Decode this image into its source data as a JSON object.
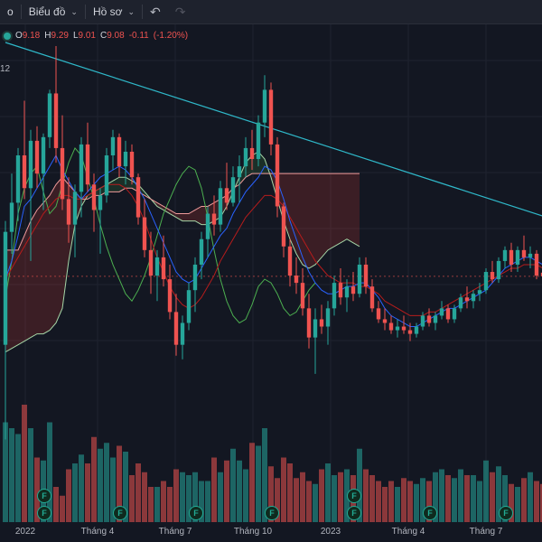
{
  "toolbar": {
    "partial_item": "o",
    "chart_menu": "Biểu đồ",
    "profile_menu": "Hồ sơ",
    "undo_icon": "undo-icon",
    "redo_icon": "redo-icon"
  },
  "legend": {
    "open_label": "O",
    "open_value": "9.18",
    "high_label": "H",
    "high_value": "9.29",
    "low_label": "L",
    "low_value": "9.01",
    "close_label": "C",
    "close_value": "9.08",
    "change": "-0.11",
    "change_pct": "(-1.20%)"
  },
  "left_edge_label": "12",
  "event_badge": "F",
  "colors": {
    "up": "#26a69a",
    "down": "#ef5350",
    "background": "#131722",
    "trendline": "#2fb8c9",
    "conversion": "#2962ff",
    "lagging": "#4caf50"
  },
  "chart_data": {
    "type": "candlestick",
    "title": "",
    "legend": {
      "open": 9.18,
      "high": 9.29,
      "low": 9.01,
      "close": 9.08,
      "change": -0.11,
      "change_pct": -1.2
    },
    "x_tick_labels": [
      "2022",
      "Tháng 4",
      "Tháng 7",
      "Tháng 10",
      "2023",
      "Tháng 4",
      "Tháng 7"
    ],
    "y_axis_visible": false,
    "price_series": [
      [
        7.2,
        10.6,
        4.6,
        10.3
      ],
      [
        10.3,
        11.9,
        9.7,
        11.1
      ],
      [
        11.1,
        12.6,
        10.6,
        12.4
      ],
      [
        12.4,
        13.9,
        11.2,
        11.5
      ],
      [
        11.5,
        13.1,
        9.5,
        12.8
      ],
      [
        12.8,
        13.2,
        11.5,
        11.9
      ],
      [
        11.9,
        13.0,
        10.9,
        12.9
      ],
      [
        12.9,
        14.2,
        12.6,
        14.1
      ],
      [
        14.1,
        15.4,
        12.2,
        12.6
      ],
      [
        12.6,
        13.5,
        10.9,
        11.2
      ],
      [
        11.2,
        11.8,
        10.0,
        10.5
      ],
      [
        10.5,
        11.6,
        9.6,
        11.4
      ],
      [
        11.4,
        12.9,
        10.7,
        12.7
      ],
      [
        12.7,
        13.3,
        11.4,
        11.6
      ],
      [
        11.6,
        11.9,
        10.3,
        10.9
      ],
      [
        10.9,
        11.5,
        9.7,
        11.3
      ],
      [
        11.3,
        12.6,
        11.1,
        12.4
      ],
      [
        12.4,
        13.1,
        12.0,
        12.9
      ],
      [
        12.9,
        13.0,
        11.8,
        12.1
      ],
      [
        12.1,
        12.8,
        11.6,
        12.5
      ],
      [
        12.5,
        12.7,
        11.6,
        11.8
      ],
      [
        11.8,
        11.9,
        10.5,
        10.7
      ],
      [
        10.7,
        11.2,
        9.6,
        9.8
      ],
      [
        9.8,
        10.3,
        8.6,
        9.1
      ],
      [
        9.1,
        9.8,
        8.4,
        9.6
      ],
      [
        9.6,
        10.2,
        8.8,
        9.0
      ],
      [
        9.0,
        9.4,
        7.9,
        8.1
      ],
      [
        8.1,
        8.6,
        6.9,
        7.2
      ],
      [
        7.2,
        8.0,
        6.8,
        7.8
      ],
      [
        7.8,
        8.9,
        7.6,
        8.7
      ],
      [
        8.7,
        9.6,
        8.1,
        9.4
      ],
      [
        9.4,
        10.3,
        9.0,
        10.1
      ],
      [
        10.1,
        11.0,
        9.6,
        10.8
      ],
      [
        10.8,
        11.3,
        10.2,
        10.5
      ],
      [
        10.5,
        11.7,
        10.3,
        11.5
      ],
      [
        11.5,
        12.2,
        10.9,
        11.1
      ],
      [
        11.1,
        12.1,
        11.0,
        11.8
      ],
      [
        11.8,
        12.4,
        11.1,
        12.1
      ],
      [
        12.1,
        12.9,
        11.8,
        12.6
      ],
      [
        12.6,
        13.1,
        12.0,
        12.3
      ],
      [
        12.3,
        13.5,
        12.1,
        13.3
      ],
      [
        13.3,
        14.6,
        12.9,
        14.2
      ],
      [
        14.2,
        14.4,
        12.4,
        12.7
      ],
      [
        12.7,
        12.9,
        10.7,
        11.0
      ],
      [
        11.0,
        11.1,
        9.6,
        9.9
      ],
      [
        9.9,
        10.1,
        8.8,
        9.1
      ],
      [
        9.1,
        9.6,
        8.6,
        8.9
      ],
      [
        8.9,
        9.3,
        8.0,
        8.2
      ],
      [
        8.2,
        8.6,
        7.1,
        7.4
      ],
      [
        7.4,
        8.2,
        6.4,
        7.9
      ],
      [
        7.9,
        8.3,
        7.5,
        7.7
      ],
      [
        7.7,
        8.4,
        7.2,
        8.2
      ],
      [
        8.2,
        9.1,
        8.0,
        8.9
      ],
      [
        8.9,
        9.3,
        8.3,
        8.5
      ],
      [
        8.5,
        9.0,
        8.1,
        8.8
      ],
      [
        8.8,
        9.2,
        8.4,
        8.6
      ],
      [
        8.6,
        9.6,
        8.5,
        9.4
      ],
      [
        9.4,
        9.6,
        8.6,
        8.8
      ],
      [
        8.8,
        9.0,
        8.1,
        8.2
      ],
      [
        8.2,
        8.4,
        7.8,
        7.9
      ],
      [
        7.9,
        8.2,
        7.6,
        7.8
      ],
      [
        7.8,
        8.0,
        7.5,
        7.6
      ],
      [
        7.6,
        7.9,
        7.4,
        7.7
      ],
      [
        7.7,
        8.0,
        7.5,
        7.6
      ],
      [
        7.6,
        7.8,
        7.3,
        7.5
      ],
      [
        7.5,
        7.8,
        7.4,
        7.7
      ],
      [
        7.7,
        8.1,
        7.6,
        8.0
      ],
      [
        8.0,
        8.2,
        7.7,
        7.8
      ],
      [
        7.8,
        8.1,
        7.6,
        8.0
      ],
      [
        8.0,
        8.4,
        7.9,
        8.2
      ],
      [
        8.2,
        8.3,
        7.8,
        7.9
      ],
      [
        7.9,
        8.3,
        7.8,
        8.2
      ],
      [
        8.2,
        8.6,
        8.1,
        8.5
      ],
      [
        8.5,
        8.8,
        8.2,
        8.4
      ],
      [
        8.4,
        8.7,
        8.2,
        8.6
      ],
      [
        8.6,
        8.9,
        8.4,
        8.7
      ],
      [
        8.7,
        9.3,
        8.6,
        9.2
      ],
      [
        9.2,
        9.5,
        8.9,
        9.0
      ],
      [
        9.0,
        9.6,
        8.9,
        9.5
      ],
      [
        9.5,
        9.9,
        9.3,
        9.8
      ],
      [
        9.8,
        10.0,
        9.2,
        9.4
      ],
      [
        9.4,
        9.9,
        9.2,
        9.8
      ],
      [
        9.8,
        10.2,
        9.5,
        9.6
      ],
      [
        9.6,
        9.9,
        9.3,
        9.7
      ],
      [
        9.7,
        9.8,
        9.0,
        9.1
      ],
      [
        9.18,
        9.29,
        9.01,
        9.08
      ]
    ],
    "volume_series": [
      34,
      32,
      30,
      40,
      32,
      22,
      21,
      34,
      12,
      9,
      18,
      20,
      23,
      20,
      29,
      25,
      27,
      22,
      26,
      24,
      16,
      20,
      17,
      12,
      12,
      14,
      12,
      18,
      17,
      16,
      17,
      14,
      14,
      22,
      17,
      21,
      25,
      21,
      18,
      27,
      26,
      32,
      19,
      15,
      22,
      20,
      15,
      17,
      14,
      13,
      18,
      20,
      16,
      17,
      18,
      16,
      25,
      18,
      16,
      14,
      12,
      14,
      12,
      15,
      14,
      13,
      15,
      14,
      17,
      18,
      16,
      15,
      18,
      16,
      16,
      14,
      21,
      17,
      19,
      16,
      13,
      12,
      15,
      17,
      14,
      13
    ],
    "trendline": {
      "from": [
        0,
        15.5
      ],
      "to": [
        85,
        10.5
      ]
    },
    "ichimoku": {
      "conversion_line": [
        9.0,
        9.5,
        10.2,
        11.0,
        11.2,
        11.5,
        11.8,
        12.1,
        12.4,
        12.0,
        11.7,
        11.4,
        11.2,
        11.4,
        11.6,
        11.8,
        11.9,
        12.0,
        12.1,
        12.0,
        11.8,
        11.5,
        11.2,
        10.8,
        10.4,
        10.0,
        9.6,
        9.2,
        9.0,
        8.9,
        9.0,
        9.3,
        9.6,
        9.9,
        10.2,
        10.4,
        10.8,
        11.1,
        11.4,
        11.6,
        11.8,
        12.1,
        12.0,
        11.7,
        11.2,
        10.6,
        10.1,
        9.6,
        9.2,
        8.9,
        8.7,
        8.6,
        8.6,
        8.7,
        8.8,
        8.8,
        8.9,
        8.9,
        8.7,
        8.5,
        8.2,
        8.0,
        7.9,
        7.8,
        7.7,
        7.7,
        7.8,
        7.9,
        8.0,
        8.1,
        8.2,
        8.2,
        8.3,
        8.4,
        8.5,
        8.6,
        8.7,
        8.9,
        9.1,
        9.3,
        9.4,
        9.5,
        9.6,
        9.6,
        9.5,
        9.4
      ],
      "base_line": [
        9.0,
        9.3,
        9.6,
        9.9,
        10.2,
        10.5,
        10.8,
        11.0,
        11.2,
        11.3,
        11.3,
        11.2,
        11.2,
        11.3,
        11.4,
        11.5,
        11.6,
        11.6,
        11.6,
        11.5,
        11.3,
        11.0,
        10.6,
        10.1,
        9.6,
        9.2,
        8.8,
        8.5,
        8.3,
        8.2,
        8.3,
        8.5,
        8.8,
        9.1,
        9.5,
        9.8,
        10.1,
        10.4,
        10.7,
        10.9,
        11.1,
        11.3,
        11.3,
        11.2,
        11.0,
        10.7,
        10.4,
        10.1,
        9.8,
        9.5,
        9.3,
        9.1,
        9.0,
        8.9,
        8.9,
        8.9,
        8.8,
        8.8,
        8.7,
        8.6,
        8.4,
        8.3,
        8.2,
        8.1,
        8.0,
        8.0,
        8.0,
        8.1,
        8.1,
        8.2,
        8.3,
        8.4,
        8.5,
        8.6,
        8.7,
        8.8,
        8.9,
        9.0,
        9.1,
        9.2,
        9.3,
        9.3,
        9.4,
        9.4,
        9.4,
        9.3
      ],
      "lagging_span": [
        8.5,
        9.5,
        10.8,
        11.5,
        11.9,
        12.1,
        11.4,
        10.8,
        11.0,
        11.6,
        12.2,
        12.6,
        12.4,
        11.8,
        11.2,
        10.5,
        9.9,
        9.4,
        9.0,
        8.6,
        8.4,
        8.7,
        9.1,
        9.6,
        10.2,
        10.8,
        11.2,
        11.6,
        11.9,
        12.1,
        12.0,
        11.5,
        10.7,
        9.8,
        9.0,
        8.4,
        8.0,
        7.8,
        7.9,
        8.3,
        8.8,
        9.0,
        8.9,
        8.6,
        8.2,
        8.0,
        8.1,
        8.4,
        8.7,
        8.9
      ],
      "leading_span_a": [
        7.0,
        7.1,
        7.2,
        7.3,
        7.4,
        7.5,
        7.5,
        7.6,
        7.8,
        8.2,
        9.5,
        10.5,
        11.0,
        11.3,
        11.4,
        11.5,
        11.6,
        11.7,
        11.8,
        11.8,
        11.7,
        11.6,
        11.4,
        11.2,
        11.0,
        10.9,
        10.8,
        10.7,
        10.6,
        10.6,
        10.6,
        10.5,
        10.5,
        10.6,
        10.7,
        11.0,
        11.4,
        11.8,
        12.2,
        12.4,
        12.5,
        12.3,
        11.8,
        11.2,
        10.6,
        10.1,
        9.7,
        9.4,
        9.3,
        9.4,
        9.6,
        9.8,
        9.9,
        10.0,
        10.1,
        10.0,
        9.9
      ],
      "leading_span_b": [
        9.8,
        9.8,
        9.8,
        10.2,
        10.6,
        10.9,
        11.1,
        11.3,
        11.6,
        11.8,
        11.6,
        11.4,
        11.2,
        11.2,
        11.3,
        11.3,
        11.4,
        11.4,
        11.4,
        11.5,
        11.5,
        11.4,
        11.3,
        11.2,
        11.1,
        11.0,
        10.9,
        10.8,
        10.8,
        10.8,
        10.9,
        11.0,
        11.0,
        11.1,
        11.2,
        11.3,
        11.5,
        11.6,
        11.8,
        11.9,
        11.9,
        11.9,
        11.9,
        11.9,
        11.9,
        11.9,
        11.9,
        11.9,
        11.9,
        11.9,
        11.9,
        11.9,
        11.9,
        11.9,
        11.9,
        11.9,
        11.9
      ]
    },
    "event_markers": [
      {
        "label": "F",
        "bar": 7
      },
      {
        "label": "F",
        "bar": 7
      },
      {
        "label": "F",
        "bar": 19
      },
      {
        "label": "F",
        "bar": 31
      },
      {
        "label": "F",
        "bar": 43
      },
      {
        "label": "F",
        "bar": 56
      },
      {
        "label": "F",
        "bar": 56
      },
      {
        "label": "F",
        "bar": 68
      },
      {
        "label": "F",
        "bar": 80
      }
    ]
  }
}
